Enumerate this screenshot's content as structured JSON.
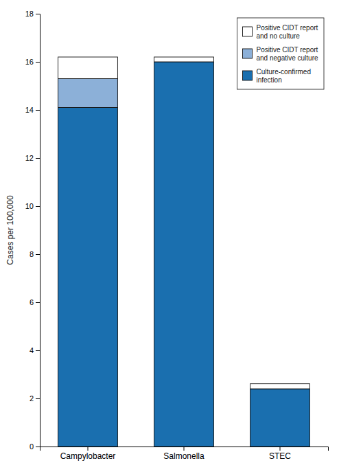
{
  "chart_data": {
    "type": "bar",
    "stacked": true,
    "categories": [
      "Campylobacter",
      "Salmonella",
      "STEC"
    ],
    "series": [
      {
        "name": "Culture-confirmed\ninfection",
        "color": "#1a6faf",
        "values": [
          14.1,
          16.0,
          2.4
        ]
      },
      {
        "name": "Positive CIDT report\nand negative culture",
        "color": "#8cb0d8",
        "values": [
          1.2,
          0.0,
          0.0
        ]
      },
      {
        "name": "Positive CIDT report\nand no culture",
        "color": "#ffffff",
        "values": [
          0.9,
          0.2,
          0.21
        ]
      }
    ],
    "ylabel": "Cases per 100,000",
    "ylim": [
      0,
      18
    ],
    "yticks": [
      0,
      2,
      4,
      6,
      8,
      10,
      12,
      14,
      16,
      18
    ],
    "grid": false,
    "legend": "upper right"
  }
}
